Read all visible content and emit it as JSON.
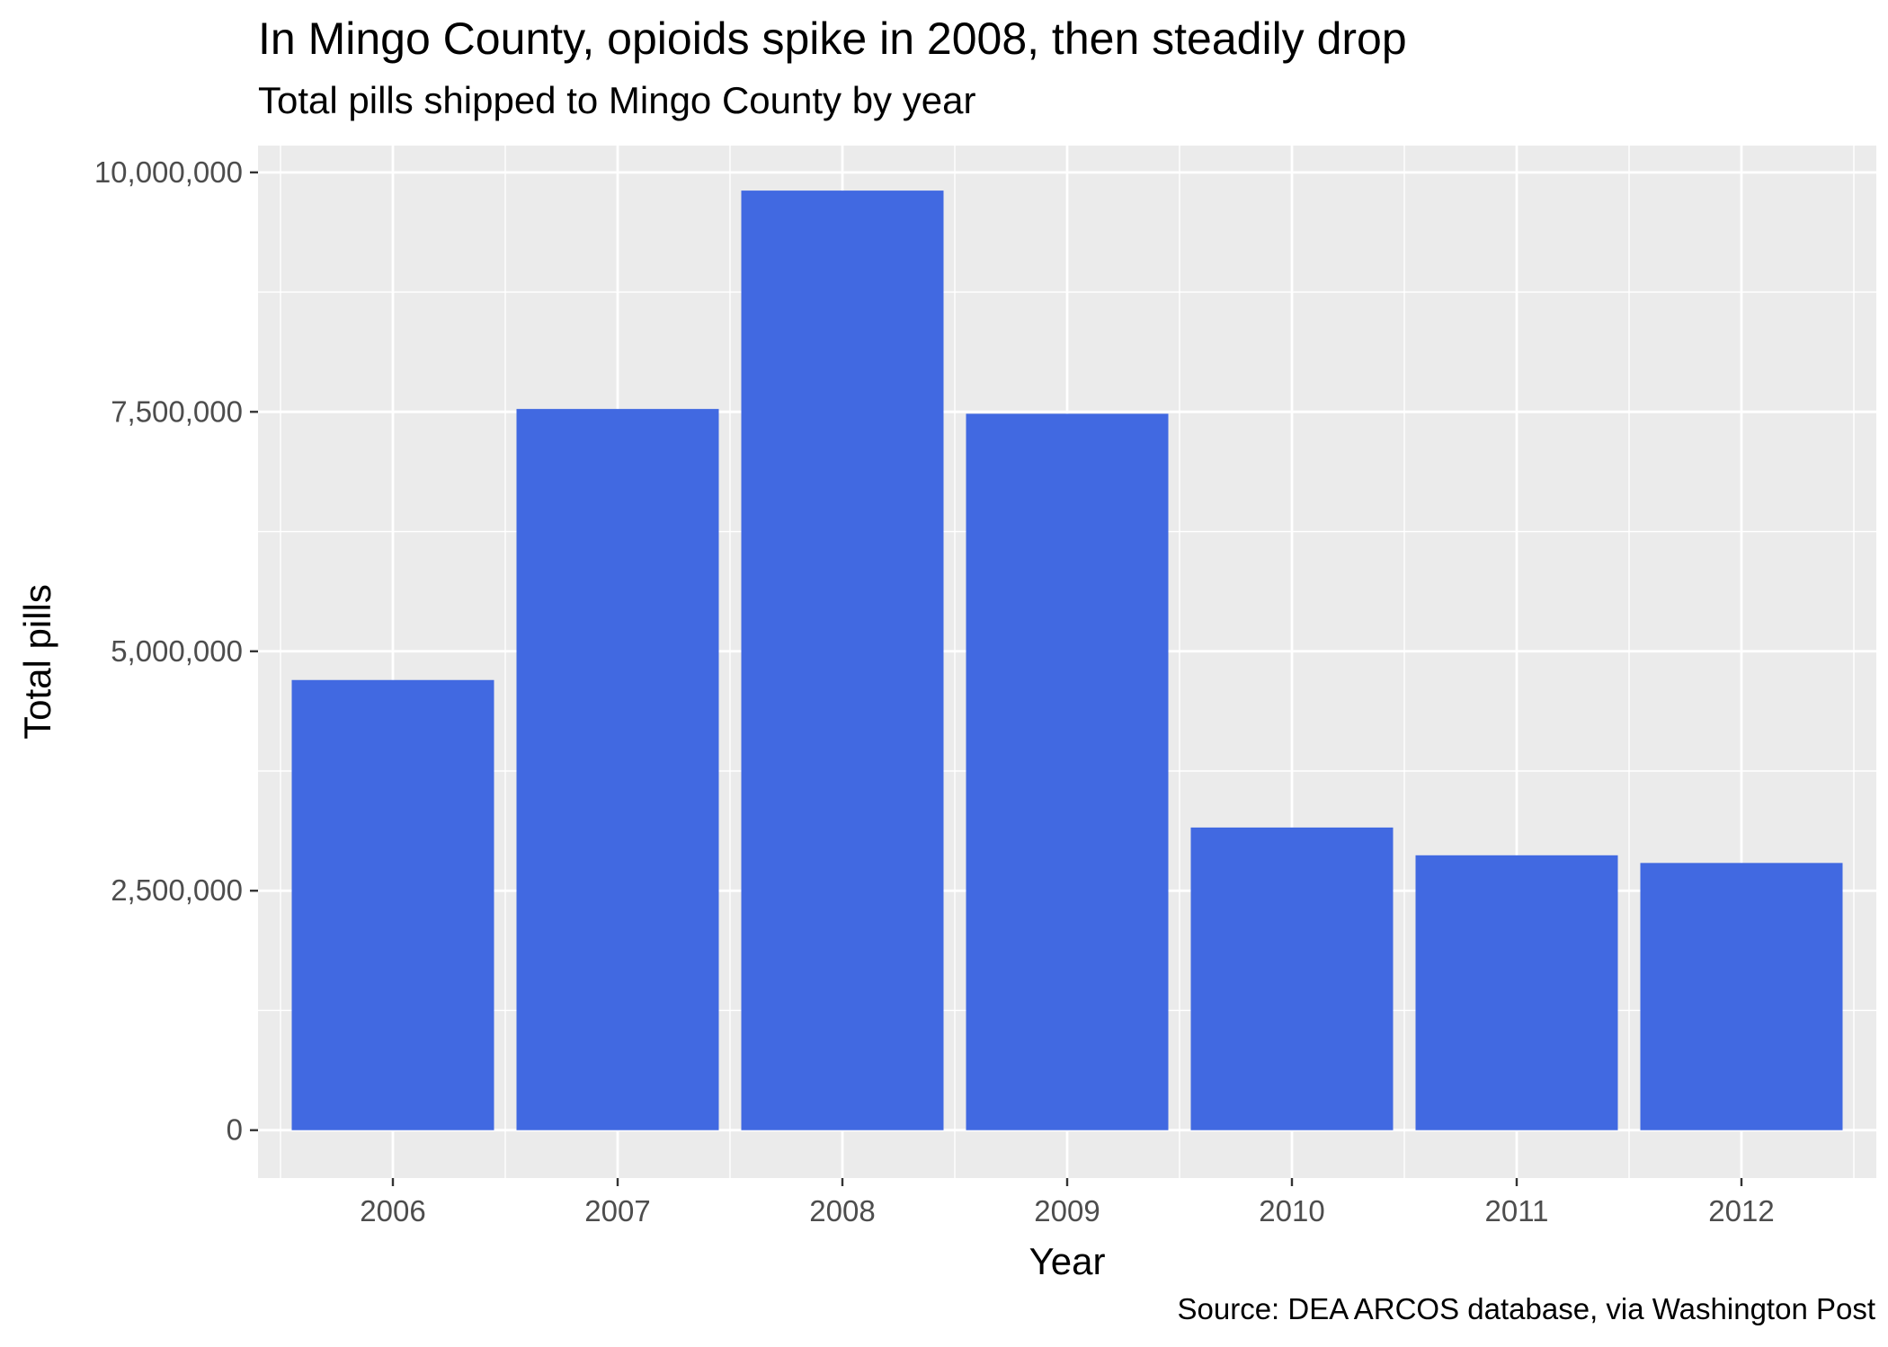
{
  "chart_data": {
    "type": "bar",
    "title": "In Mingo County, opioids spike in 2008, then steadily drop",
    "subtitle": "Total pills shipped to Mingo County by year",
    "xlabel": "Year",
    "ylabel": "Total pills",
    "caption": "Source: DEA ARCOS database, via Washington Post",
    "categories": [
      "2006",
      "2007",
      "2008",
      "2009",
      "2010",
      "2011",
      "2012"
    ],
    "values": [
      4700000,
      7530000,
      9810000,
      7480000,
      3160000,
      2870000,
      2790000
    ],
    "ylim": [
      -500000,
      10280000
    ],
    "yticks": [
      0,
      2500000,
      5000000,
      7500000,
      10000000
    ],
    "ytick_labels": [
      "0",
      "2,500,000",
      "5,000,000",
      "7,500,000",
      "10,000,000"
    ],
    "grid": true,
    "legend": "none",
    "colors": {
      "bar": "#4169E1",
      "panel": "#EBEBEB",
      "grid": "#FFFFFF",
      "tick_text": "#4D4D4D",
      "tick_mark": "#333333"
    }
  }
}
